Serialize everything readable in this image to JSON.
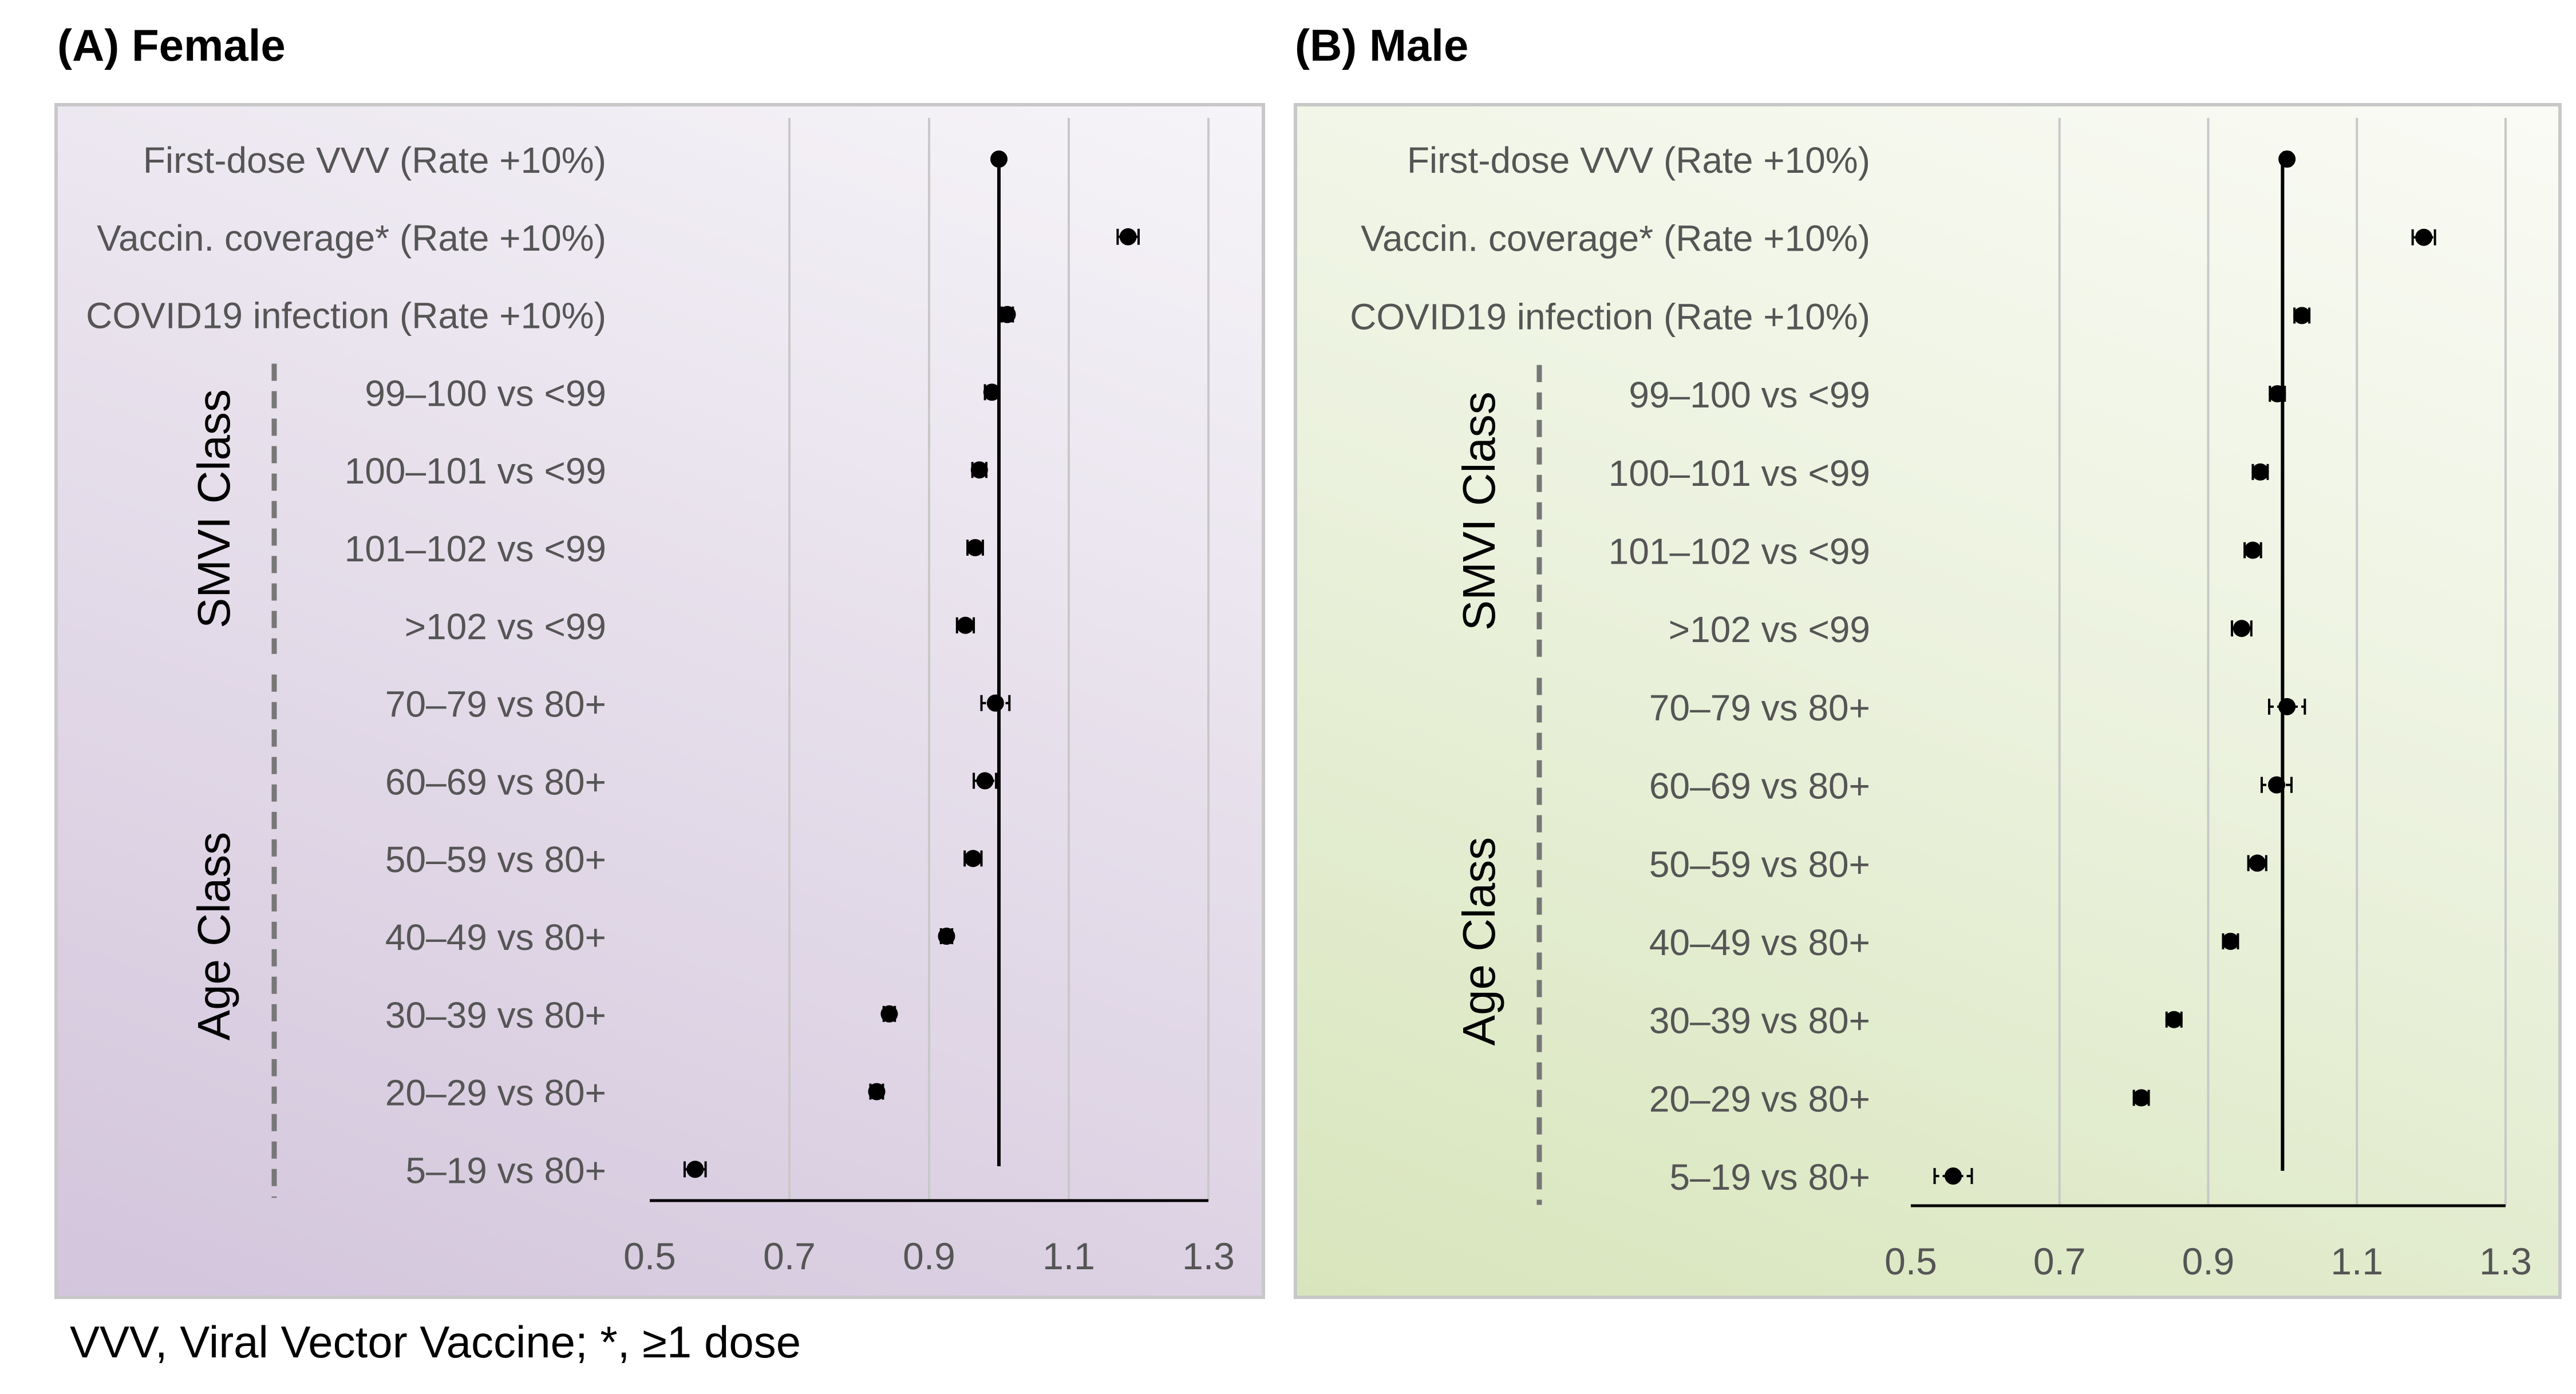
{
  "chart_data": [
    {
      "type": "forest",
      "panel": "A",
      "title": "(A) Female",
      "xlim": [
        0.5,
        1.3
      ],
      "xticks": [
        "0.5",
        "0.7",
        "0.9",
        "1.1",
        "1.3"
      ],
      "reference_line": 1.0,
      "groups": [
        {
          "label": "SMVI Class",
          "rows": [
            3,
            6
          ]
        },
        {
          "label": "Age Class",
          "rows": [
            7,
            13
          ]
        }
      ],
      "rows": [
        {
          "label": "First-dose VVV (Rate +10%)",
          "estimate": 1.0,
          "lower": 1.0,
          "upper": 1.0
        },
        {
          "label": "Vaccin. coverage* (Rate +10%)",
          "estimate": 1.185,
          "lower": 1.17,
          "upper": 1.2
        },
        {
          "label": "COVID19 infection (Rate +10%)",
          "estimate": 1.012,
          "lower": 1.004,
          "upper": 1.02
        },
        {
          "label": "99–100 vs <99",
          "estimate": 0.99,
          "lower": 0.98,
          "upper": 1.0
        },
        {
          "label": "100–101 vs <99",
          "estimate": 0.972,
          "lower": 0.962,
          "upper": 0.982
        },
        {
          "label": "101–102 vs <99",
          "estimate": 0.966,
          "lower": 0.955,
          "upper": 0.977
        },
        {
          "label": ">102 vs <99",
          "estimate": 0.952,
          "lower": 0.94,
          "upper": 0.964
        },
        {
          "label": "70–79 vs 80+",
          "estimate": 0.995,
          "lower": 0.975,
          "upper": 1.015
        },
        {
          "label": "60–69 vs 80+",
          "estimate": 0.98,
          "lower": 0.964,
          "upper": 0.996
        },
        {
          "label": "50–59 vs 80+",
          "estimate": 0.963,
          "lower": 0.951,
          "upper": 0.975
        },
        {
          "label": "40–49 vs 80+",
          "estimate": 0.925,
          "lower": 0.917,
          "upper": 0.933
        },
        {
          "label": "30–39 vs 80+",
          "estimate": 0.843,
          "lower": 0.835,
          "upper": 0.851
        },
        {
          "label": "20–29 vs 80+",
          "estimate": 0.825,
          "lower": 0.816,
          "upper": 0.834
        },
        {
          "label": "5–19 vs 80+",
          "estimate": 0.565,
          "lower": 0.55,
          "upper": 0.58
        }
      ]
    },
    {
      "type": "forest",
      "panel": "B",
      "title": "(B) Male",
      "xlim": [
        0.5,
        1.3
      ],
      "xticks": [
        "0.5",
        "0.7",
        "0.9",
        "1.1",
        "1.3"
      ],
      "reference_line": 1.0,
      "groups": [
        {
          "label": "SMVI Class",
          "rows": [
            3,
            6
          ]
        },
        {
          "label": "Age Class",
          "rows": [
            7,
            13
          ]
        }
      ],
      "rows": [
        {
          "label": "First-dose VVV (Rate +10%)",
          "estimate": 1.006,
          "lower": 1.002,
          "upper": 1.01
        },
        {
          "label": "Vaccin. coverage* (Rate +10%)",
          "estimate": 1.19,
          "lower": 1.175,
          "upper": 1.205
        },
        {
          "label": "COVID19 infection (Rate +10%)",
          "estimate": 1.026,
          "lower": 1.016,
          "upper": 1.036
        },
        {
          "label": "99–100 vs <99",
          "estimate": 0.993,
          "lower": 0.983,
          "upper": 1.003
        },
        {
          "label": "100–101 vs <99",
          "estimate": 0.97,
          "lower": 0.96,
          "upper": 0.98
        },
        {
          "label": "101–102 vs <99",
          "estimate": 0.96,
          "lower": 0.949,
          "upper": 0.971
        },
        {
          "label": ">102 vs <99",
          "estimate": 0.945,
          "lower": 0.932,
          "upper": 0.958
        },
        {
          "label": "70–79 vs 80+",
          "estimate": 1.006,
          "lower": 0.982,
          "upper": 1.03
        },
        {
          "label": "60–69 vs 80+",
          "estimate": 0.992,
          "lower": 0.972,
          "upper": 1.012
        },
        {
          "label": "50–59 vs 80+",
          "estimate": 0.966,
          "lower": 0.954,
          "upper": 0.978
        },
        {
          "label": "40–49 vs 80+",
          "estimate": 0.93,
          "lower": 0.92,
          "upper": 0.94
        },
        {
          "label": "30–39 vs 80+",
          "estimate": 0.854,
          "lower": 0.844,
          "upper": 0.864
        },
        {
          "label": "20–29 vs 80+",
          "estimate": 0.81,
          "lower": 0.8,
          "upper": 0.82
        },
        {
          "label": "5–19 vs 80+",
          "estimate": 0.557,
          "lower": 0.532,
          "upper": 0.582
        }
      ]
    }
  ],
  "footnote": "VVV, Viral Vector Vaccine; *, ≥1 dose",
  "colors": {
    "marker": "#000000",
    "grid": "#c8c8c8",
    "group_divider": "#777777",
    "panel_border": "#c8c8c8"
  }
}
